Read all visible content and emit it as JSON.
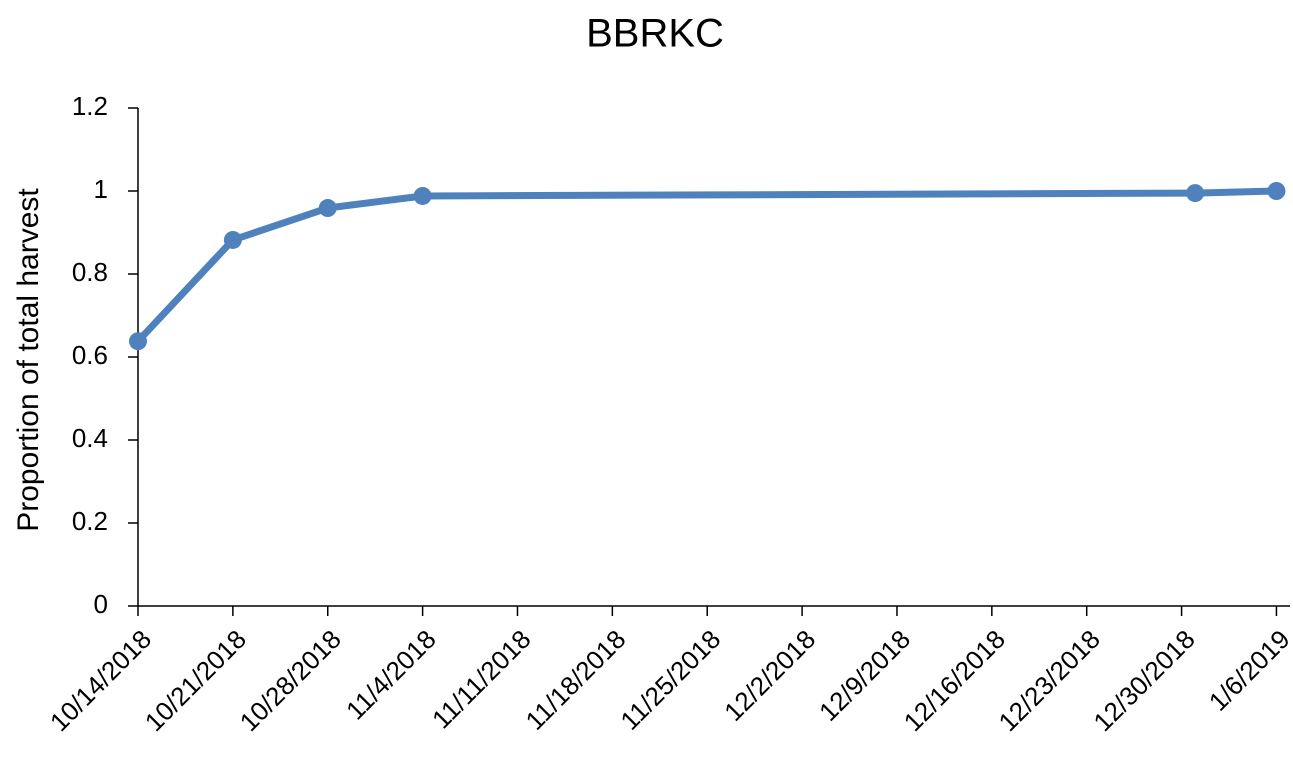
{
  "chart_data": {
    "type": "line",
    "title": "BBRKC",
    "y_label": "Proportion of total harvest",
    "x": [
      "10/14/2018",
      "10/21/2018",
      "10/28/2018",
      "11/4/2018",
      "12/31/2018",
      "1/6/2019"
    ],
    "values": [
      0.638,
      0.882,
      0.959,
      0.988,
      0.995,
      1.0
    ],
    "color": "#4f81bd",
    "xlim": [
      "10/14/2018",
      "1/7/2019"
    ],
    "xticks": [
      "10/14/2018",
      "10/21/2018",
      "10/28/2018",
      "11/4/2018",
      "11/11/2018",
      "11/18/2018",
      "11/25/2018",
      "12/2/2018",
      "12/9/2018",
      "12/16/2018",
      "12/23/2018",
      "12/30/2018",
      "1/6/2019"
    ],
    "ylim": [
      0,
      1.2
    ],
    "yticks": [
      0,
      0.2,
      0.4,
      0.6,
      0.8,
      1,
      1.2
    ],
    "grid": false
  }
}
